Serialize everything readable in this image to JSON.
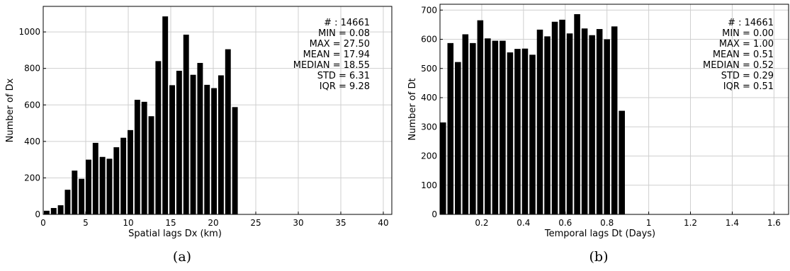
{
  "charts": [
    {
      "caption": "(a)",
      "chart_data": {
        "type": "bar",
        "xlabel": "Spatial lags Dx (km)",
        "ylabel": "Number of Dx",
        "xlim": [
          0,
          41
        ],
        "ylim": [
          0,
          1140
        ],
        "xticks": [
          0,
          5,
          10,
          15,
          20,
          25,
          30,
          35,
          40
        ],
        "yticks": [
          0,
          200,
          400,
          600,
          800,
          1000
        ],
        "bin_width": 0.82,
        "bar_width": 0.66,
        "bin_start": 0.08,
        "values": [
          20,
          35,
          50,
          135,
          240,
          195,
          300,
          392,
          315,
          305,
          368,
          420,
          462,
          628,
          617,
          538,
          840,
          1085,
          708,
          787,
          985,
          765,
          830,
          710,
          692,
          762,
          905,
          588
        ],
        "stats": [
          "# : 14661",
          "MIN = 0.08",
          "MAX =  27.50",
          "MEAN = 17.94",
          "MEDIAN = 18.55",
          "STD = 6.31",
          "IQR = 9.28"
        ]
      }
    },
    {
      "caption": "(b)",
      "chart_data": {
        "type": "bar",
        "xlabel": "Temporal lags Dt (Days)",
        "ylabel": "Number of Dt",
        "xlim": [
          0,
          1.67
        ],
        "ylim": [
          0,
          720
        ],
        "xticks": [
          0.2,
          0.4,
          0.6,
          0.8,
          1,
          1.2,
          1.4,
          1.6
        ],
        "yticks": [
          0,
          100,
          200,
          300,
          400,
          500,
          600,
          700
        ],
        "bin_width": 0.0357,
        "bar_width": 0.029,
        "bin_start": 0,
        "values": [
          315,
          587,
          522,
          617,
          587,
          665,
          603,
          595,
          595,
          555,
          567,
          568,
          547,
          633,
          610,
          660,
          667,
          620,
          686,
          637,
          614,
          635,
          600,
          644,
          355
        ],
        "stats": [
          "# : 14661",
          "MIN = 0.00",
          "MAX =  1.00",
          "MEAN = 0.51",
          "MEDIAN = 0.52",
          "STD = 0.29",
          "IQR = 0.51"
        ]
      }
    }
  ]
}
